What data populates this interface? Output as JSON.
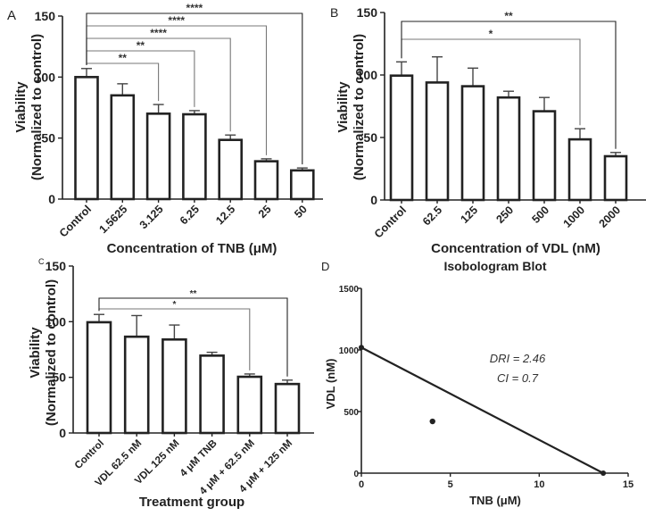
{
  "chart_data": [
    {
      "panel": "A",
      "type": "bar",
      "title": "",
      "xlabel": "Concentration of TNB (μM)",
      "ylabel": "Viability",
      "ylabel2": "(Normalized to control)",
      "ylim": [
        0,
        150
      ],
      "yticks": [
        0,
        50,
        100,
        150
      ],
      "categories": [
        "Control",
        "1.5625",
        "3.125",
        "6.25",
        "12.5",
        "25",
        "50"
      ],
      "values": [
        100,
        85,
        70,
        69.5,
        48.5,
        31,
        23.5
      ],
      "errors": [
        7,
        9.5,
        7.5,
        3,
        4,
        2,
        2
      ],
      "significance": [
        {
          "from": "Control",
          "to": "3.125",
          "label": "**"
        },
        {
          "from": "Control",
          "to": "6.25",
          "label": "**"
        },
        {
          "from": "Control",
          "to": "12.5",
          "label": "****"
        },
        {
          "from": "Control",
          "to": "25",
          "label": "****"
        },
        {
          "from": "Control",
          "to": "50",
          "label": "****"
        }
      ]
    },
    {
      "panel": "B",
      "type": "bar",
      "title": "",
      "xlabel": "Concentration of VDL (nM)",
      "ylabel": "Viability",
      "ylabel2": "(Normalized to control)",
      "ylim": [
        0,
        150
      ],
      "yticks": [
        0,
        50,
        100,
        150
      ],
      "categories": [
        "Control",
        "62.5",
        "125",
        "250",
        "500",
        "1000",
        "2000"
      ],
      "values": [
        99.5,
        94,
        91,
        82,
        71,
        48.5,
        35
      ],
      "errors": [
        11,
        20.5,
        14.5,
        5,
        11,
        8.5,
        3
      ],
      "significance": [
        {
          "from": "Control",
          "to": "1000",
          "label": "*"
        },
        {
          "from": "Control",
          "to": "2000",
          "label": "**"
        }
      ]
    },
    {
      "panel": "C",
      "type": "bar",
      "title": "",
      "xlabel": "Treatment group",
      "ylabel": "Viability",
      "ylabel2": "(Normalized to control)",
      "ylim": [
        0,
        150
      ],
      "yticks": [
        0,
        50,
        100,
        150
      ],
      "categories": [
        "Control",
        "VDL 62.5 nM",
        "VDL 125 nM",
        "4 μM TNB",
        "4 μM + 62.5 nM",
        "4 μM + 125 nM"
      ],
      "values": [
        99.5,
        86.5,
        84,
        69.5,
        50.5,
        44
      ],
      "errors": [
        7,
        19,
        13,
        3,
        2.5,
        3.5
      ],
      "significance": [
        {
          "from": "Control",
          "to": "4 μM + 62.5 nM",
          "label": "*"
        },
        {
          "from": "Control",
          "to": "4 μM + 125 nM",
          "label": "**"
        }
      ]
    },
    {
      "panel": "D",
      "type": "line",
      "title": "Isobologram Blot",
      "xlabel": "TNB (μM)",
      "ylabel": "VDL (nM)",
      "xlim": [
        0,
        15
      ],
      "ylim": [
        0,
        1500
      ],
      "xticks": [
        0,
        5,
        10,
        15
      ],
      "yticks": [
        0,
        500,
        1000,
        1500
      ],
      "series": [
        {
          "name": "isobole",
          "x": [
            0,
            13.6
          ],
          "y": [
            1020,
            0
          ]
        },
        {
          "name": "combination",
          "type": "scatter",
          "x": [
            4
          ],
          "y": [
            420
          ]
        }
      ],
      "annotations": [
        "DRI = 2.46",
        "CI = 0.7"
      ]
    }
  ]
}
